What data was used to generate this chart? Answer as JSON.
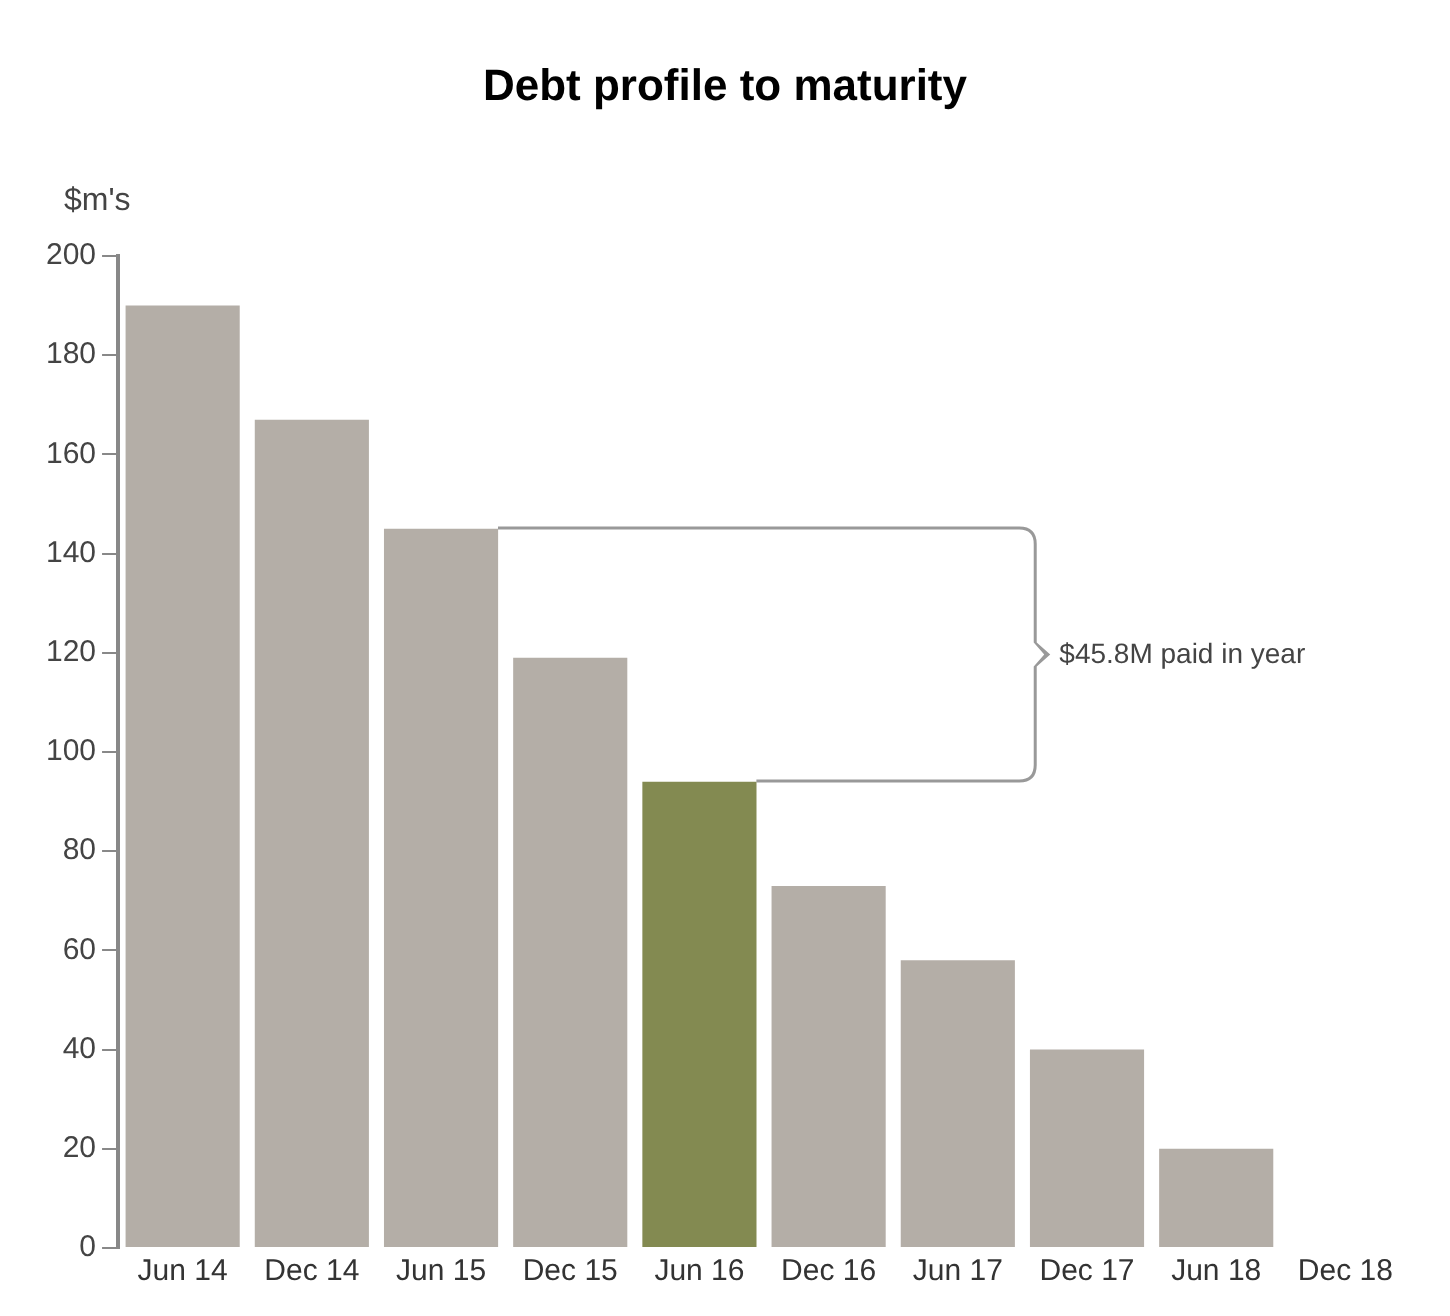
{
  "chart_data": {
    "type": "bar",
    "title": "Debt profile to maturity",
    "ylabel": "$m's",
    "categories": [
      "Jun 14",
      "Dec 14",
      "Jun 15",
      "Dec 15",
      "Jun 16",
      "Dec 16",
      "Jun 17",
      "Dec 17",
      "Jun 18",
      "Dec 18"
    ],
    "values": [
      190,
      167,
      145,
      119,
      94,
      73,
      58,
      40,
      20,
      null
    ],
    "colors": [
      "#b4aea7",
      "#b4aea7",
      "#b4aea7",
      "#b4aea7",
      "#838a51",
      "#b4aea7",
      "#b4aea7",
      "#b4aea7",
      "#b4aea7",
      "#b4aea7"
    ],
    "ylim": [
      0,
      200
    ],
    "yticks": [
      0,
      20,
      40,
      60,
      80,
      100,
      120,
      140,
      160,
      180,
      200
    ],
    "grid": false,
    "legend": false,
    "annotations": [
      "$45.8M paid in year"
    ]
  }
}
